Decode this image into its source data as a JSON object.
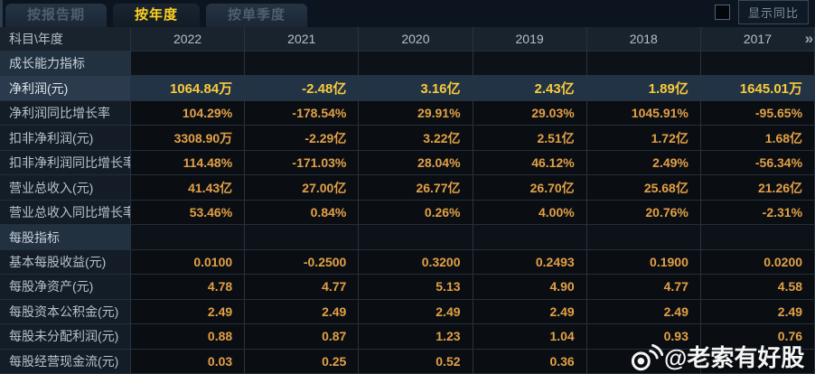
{
  "tabs": [
    {
      "label": "按报告期",
      "active": false
    },
    {
      "label": "按年度",
      "active": true
    },
    {
      "label": "按单季度",
      "active": false
    }
  ],
  "controls": {
    "show_yoy_label": "显示同比"
  },
  "table": {
    "columns": [
      "科目\\年度",
      "2022",
      "2021",
      "2020",
      "2019",
      "2018",
      "2017"
    ],
    "more_years_icon": "»",
    "rows": [
      {
        "type": "section",
        "label": "成长能力指标",
        "values": [
          "",
          "",
          "",
          "",
          "",
          ""
        ]
      },
      {
        "type": "highlight",
        "label": "净利润(元)",
        "values": [
          "1064.84万",
          "-2.48亿",
          "3.16亿",
          "2.43亿",
          "1.89亿",
          "1645.01万"
        ]
      },
      {
        "type": "data",
        "label": "净利润同比增长率",
        "values": [
          "104.29%",
          "-178.54%",
          "29.91%",
          "29.03%",
          "1045.91%",
          "-95.65%"
        ]
      },
      {
        "type": "data",
        "label": "扣非净利润(元)",
        "values": [
          "3308.90万",
          "-2.29亿",
          "3.22亿",
          "2.51亿",
          "1.72亿",
          "1.68亿"
        ]
      },
      {
        "type": "data",
        "label": "扣非净利润同比增长率",
        "values": [
          "114.48%",
          "-171.03%",
          "28.04%",
          "46.12%",
          "2.49%",
          "-56.34%"
        ]
      },
      {
        "type": "data",
        "label": "营业总收入(元)",
        "values": [
          "41.43亿",
          "27.00亿",
          "26.77亿",
          "26.70亿",
          "25.68亿",
          "21.26亿"
        ]
      },
      {
        "type": "data",
        "label": "营业总收入同比增长率",
        "values": [
          "53.46%",
          "0.84%",
          "0.26%",
          "4.00%",
          "20.76%",
          "-2.31%"
        ]
      },
      {
        "type": "section",
        "label": "每股指标",
        "values": [
          "",
          "",
          "",
          "",
          "",
          ""
        ]
      },
      {
        "type": "data",
        "label": "基本每股收益(元)",
        "values": [
          "0.0100",
          "-0.2500",
          "0.3200",
          "0.2493",
          "0.1900",
          "0.0200"
        ]
      },
      {
        "type": "data",
        "label": "每股净资产(元)",
        "values": [
          "4.78",
          "4.77",
          "5.13",
          "4.90",
          "4.77",
          "4.58"
        ]
      },
      {
        "type": "data",
        "label": "每股资本公积金(元)",
        "values": [
          "2.49",
          "2.49",
          "2.49",
          "2.49",
          "2.49",
          "2.49"
        ]
      },
      {
        "type": "data",
        "label": "每股未分配利润(元)",
        "values": [
          "0.88",
          "0.87",
          "1.23",
          "1.04",
          "0.93",
          "0.76"
        ]
      },
      {
        "type": "data",
        "label": "每股经营现金流(元)",
        "values": [
          "0.03",
          "0.25",
          "0.52",
          "0.36",
          "",
          ""
        ]
      }
    ]
  },
  "watermark": {
    "text": "@老索有好股"
  },
  "colors": {
    "accent_gold": "#ffd21e",
    "value_orange": "#e3a045",
    "highlight_row_bg": "#223346",
    "label_col_bg": "#131c27",
    "section_label_bg": "#223140",
    "grid_line": "#28333f"
  }
}
